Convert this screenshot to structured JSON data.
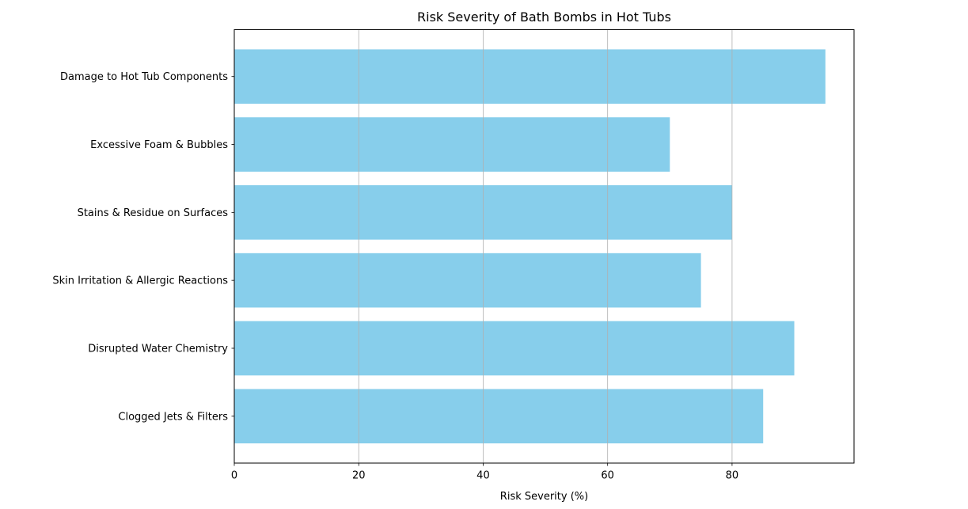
{
  "figure": {
    "background_color": "#ffffff"
  },
  "chart_data": {
    "type": "bar",
    "orientation": "horizontal",
    "title": "Risk Severity of Bath Bombs in Hot Tubs",
    "xlabel": "Risk Severity (%)",
    "ylabel": "",
    "categories": [
      "Damage to Hot Tub Components",
      "Excessive Foam & Bubbles",
      "Stains & Residue on Surfaces",
      "Skin Irritation & Allergic Reactions",
      "Disrupted Water Chemistry",
      "Clogged Jets & Filters"
    ],
    "values": [
      95,
      70,
      80,
      75,
      90,
      85
    ],
    "xlim": [
      0,
      99.6
    ],
    "xticks": [
      0,
      20,
      40,
      60,
      80
    ],
    "xtick_labels": [
      "0",
      "20",
      "40",
      "60",
      "80"
    ],
    "grid": true,
    "grid_axis": "x",
    "grid_on_top_of_bars": true,
    "legend": null,
    "bar_color": "#87CEEB",
    "gridline_color": "#b0b0b0",
    "spine_color": "#000000",
    "text_color": "#000000"
  }
}
